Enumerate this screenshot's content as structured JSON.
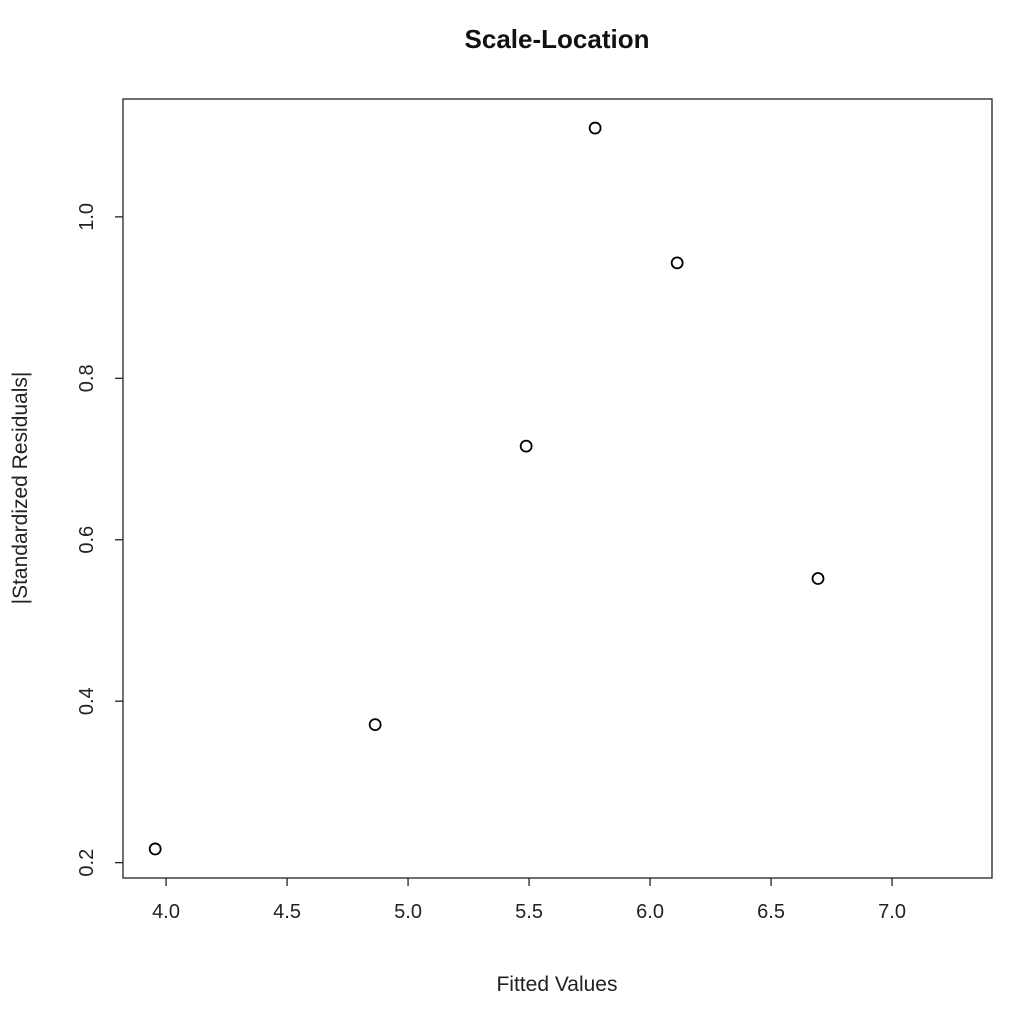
{
  "chart_data": {
    "type": "scatter",
    "title": "Scale-Location",
    "xlabel": "Fitted Values",
    "ylabel": "|Standardized Residuals|",
    "xlim": [
      3.822,
      7.413
    ],
    "ylim": [
      0.181,
      1.146
    ],
    "xticks": [
      4.0,
      4.5,
      5.0,
      5.5,
      6.0,
      6.5,
      7.0
    ],
    "xtick_labels": [
      "4.0",
      "4.5",
      "5.0",
      "5.5",
      "6.0",
      "6.5",
      "7.0"
    ],
    "yticks": [
      0.2,
      0.4,
      0.6,
      0.8,
      1.0
    ],
    "ytick_labels": [
      "0.2",
      "0.4",
      "0.6",
      "0.8",
      "1.0"
    ],
    "grid": false,
    "marker": "open-circle",
    "color": "#000000",
    "points": [
      {
        "x": 3.955,
        "y": 0.217
      },
      {
        "x": 4.864,
        "y": 0.371
      },
      {
        "x": 5.488,
        "y": 0.716
      },
      {
        "x": 5.773,
        "y": 1.11
      },
      {
        "x": 6.112,
        "y": 0.943
      },
      {
        "x": 6.694,
        "y": 0.552
      }
    ]
  }
}
